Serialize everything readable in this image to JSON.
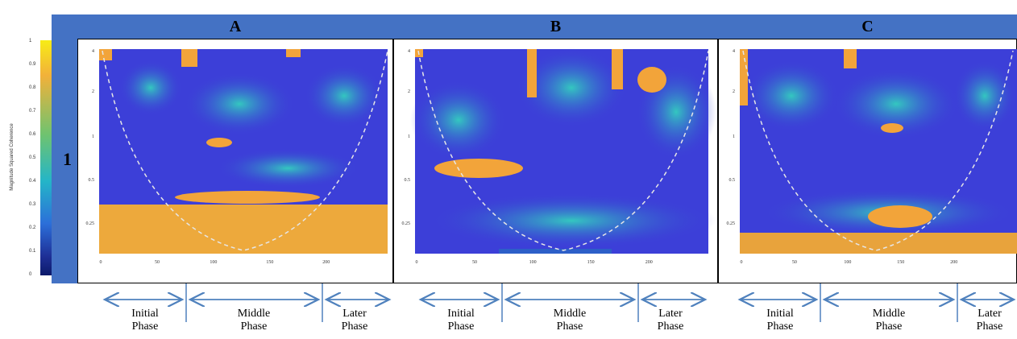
{
  "columns": [
    "A",
    "B",
    "C"
  ],
  "row_label": "1",
  "colorbar": {
    "label": "Magnitude Squared Coherence",
    "ticks": [
      "1",
      "0.9",
      "0.8",
      "0.7",
      "0.6",
      "0.5",
      "0.4",
      "0.3",
      "0.2",
      "0.1",
      "0"
    ]
  },
  "plot": {
    "y_ticks": [
      "4",
      "2",
      "1",
      "0.5",
      "0.25"
    ],
    "x_ticks": [
      "0",
      "50",
      "100",
      "150",
      "200"
    ]
  },
  "phases": {
    "initial": [
      "Initial",
      "Phase"
    ],
    "middle": [
      "Middle",
      "Phase"
    ],
    "later": [
      "Later",
      "Phase"
    ]
  },
  "colors": {
    "header_blue": "#4472c4",
    "plot_blue": "#3a3ad6",
    "plot_cyan": "#2fb0c8",
    "plot_yellow": "#f2b13a",
    "arrow_blue": "#4f81bd"
  }
}
